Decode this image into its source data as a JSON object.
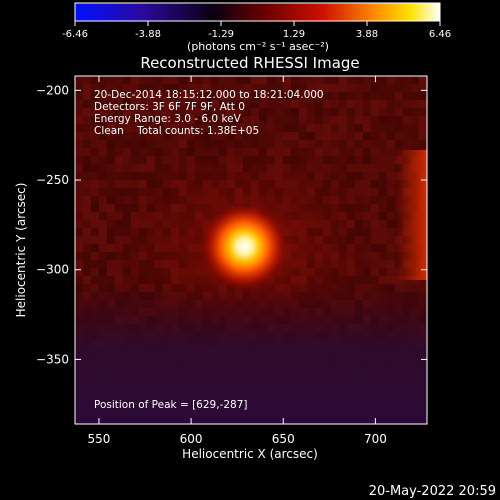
{
  "colorbar": {
    "ticks": [
      "-6.46",
      "-3.88",
      "-1.29",
      "1.29",
      "3.88",
      "6.46"
    ],
    "unit_label": "(photons cm⁻² s⁻¹ asec⁻²)",
    "range": [
      -6.46,
      6.46
    ]
  },
  "chart_data": {
    "type": "heatmap",
    "title": "Reconstructed RHESSI Image",
    "xlabel": "Heliocentric X (arcsec)",
    "ylabel": "Heliocentric Y (arcsec)",
    "xlim": [
      537,
      728
    ],
    "ylim": [
      -386,
      -192
    ],
    "x_ticks": [
      550,
      600,
      650,
      700
    ],
    "x_tick_labels": [
      "550",
      "600",
      "650",
      "700"
    ],
    "y_ticks": [
      -200,
      -250,
      -300,
      -350
    ],
    "y_tick_labels": [
      "−200",
      "−250",
      "−300",
      "−350"
    ],
    "peak": {
      "x": 629,
      "y": -287
    },
    "annotations": [
      "20-Dec-2014 18:15:12.000 to 18:21:04.000",
      "Detectors: 3F 6F 7F 9F, Att 0",
      "Energy Range: 3.0 - 6.0 keV",
      "Clean    Total counts: 1.38E+05"
    ],
    "peak_label": "Position of Peak = [629,-287]",
    "colormap": [
      "#0000ff",
      "#200080",
      "#000000",
      "#8a0000",
      "#ff3300",
      "#ffcc00",
      "#ffffff"
    ]
  },
  "footer": {
    "timestamp": "20-May-2022 20:59"
  }
}
